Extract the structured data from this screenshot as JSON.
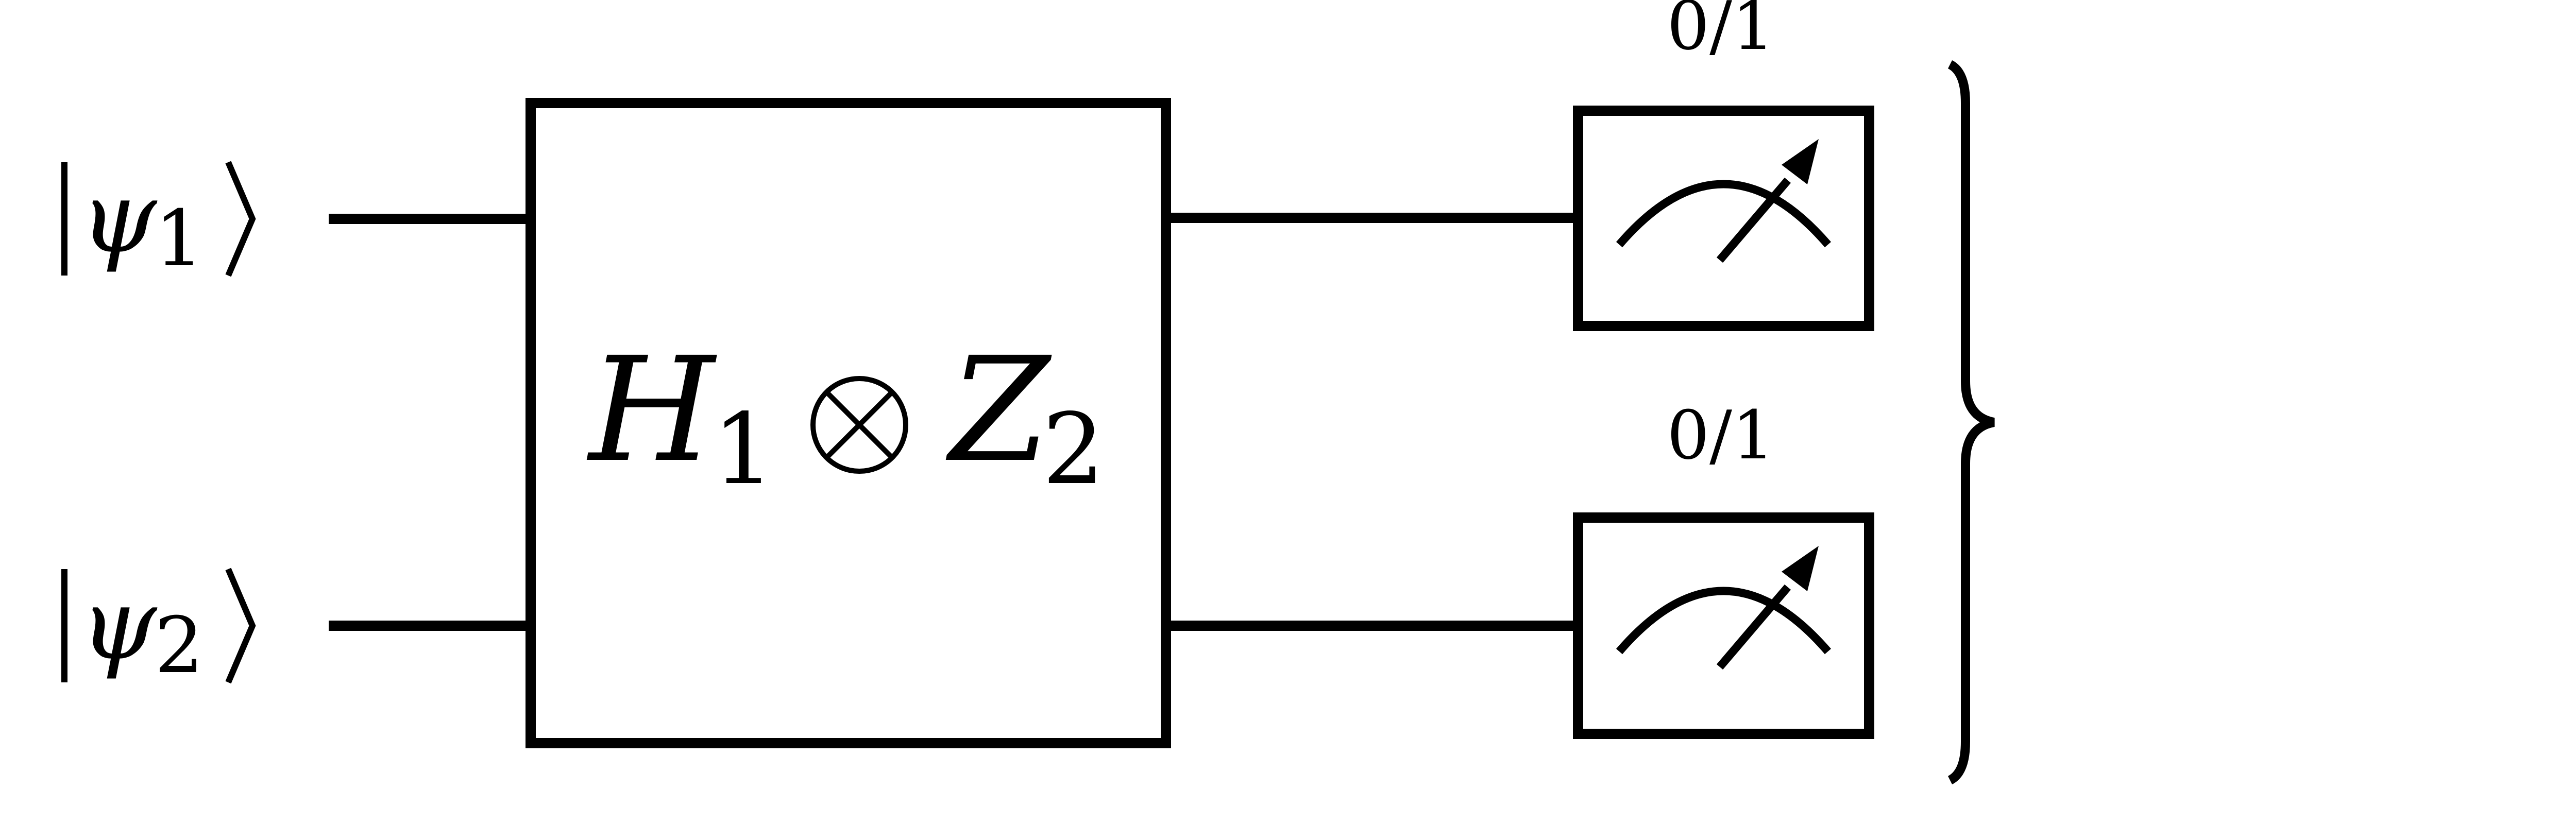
{
  "inputs": [
    {
      "ket_symbol": "ψ",
      "subscript": "1"
    },
    {
      "ket_symbol": "ψ",
      "subscript": "2"
    }
  ],
  "gate": {
    "op1_symbol": "H",
    "op1_subscript": "1",
    "op2_symbol": "Z",
    "op2_subscript": "2"
  },
  "measurements": [
    {
      "outcome_label": "0/1",
      "icon": "meter-icon"
    },
    {
      "outcome_label": "0/1",
      "icon": "meter-icon"
    }
  ],
  "colors": {
    "stroke": "#000000",
    "background": "#ffffff"
  }
}
